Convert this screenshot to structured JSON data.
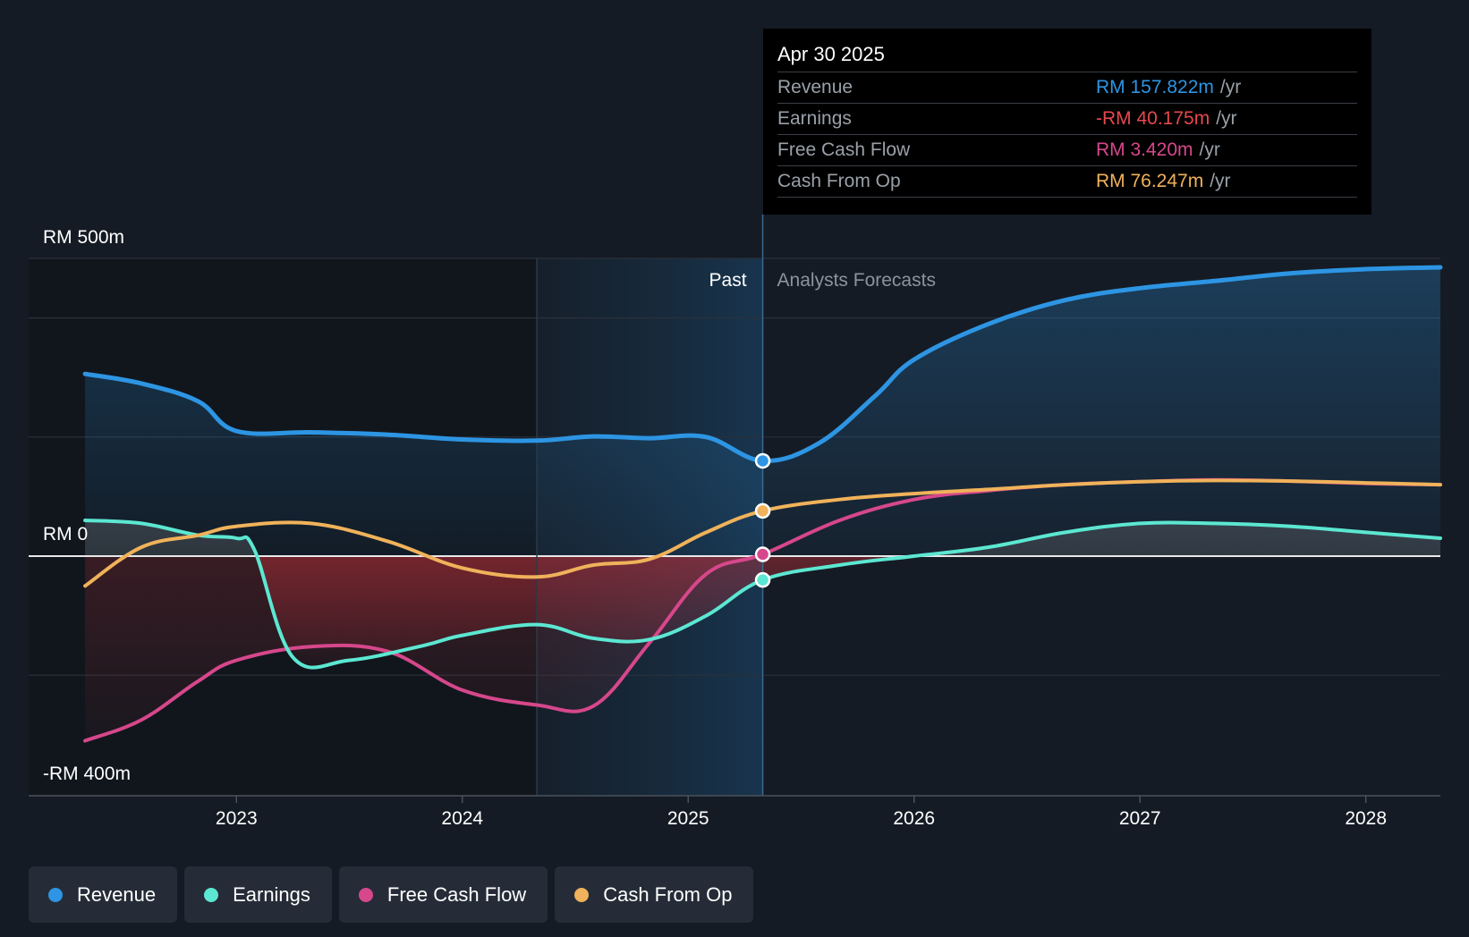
{
  "chart_data": {
    "type": "line",
    "currency_prefix": "RM",
    "y_axis": {
      "min": -400,
      "max": 500,
      "unit": "RM m",
      "labels": [
        {
          "value": 500,
          "text": "RM 500m"
        },
        {
          "value": 0,
          "text": "RM 0"
        },
        {
          "value": -400,
          "text": "-RM 400m"
        }
      ],
      "gridlines": [
        500,
        400,
        200,
        0,
        -200
      ]
    },
    "x_axis": {
      "min": 2022.08,
      "max": 2028.33,
      "ticks": [
        {
          "value": 2023.0,
          "text": "2023"
        },
        {
          "value": 2024.0,
          "text": "2024"
        },
        {
          "value": 2025.0,
          "text": "2025"
        },
        {
          "value": 2026.0,
          "text": "2026"
        },
        {
          "value": 2027.0,
          "text": "2027"
        },
        {
          "value": 2028.0,
          "text": "2028"
        }
      ]
    },
    "regions": {
      "highlight_start": 2024.33,
      "divider": 2025.33,
      "past_label": "Past",
      "forecast_label": "Analysts Forecasts"
    },
    "series": [
      {
        "name": "Revenue",
        "color": "#2d95e3",
        "points": [
          [
            2022.33,
            306
          ],
          [
            2022.58,
            290
          ],
          [
            2022.83,
            260
          ],
          [
            2023.0,
            210
          ],
          [
            2023.33,
            208
          ],
          [
            2023.67,
            204
          ],
          [
            2024.0,
            196
          ],
          [
            2024.33,
            194
          ],
          [
            2024.58,
            201
          ],
          [
            2024.83,
            198
          ],
          [
            2025.08,
            200
          ],
          [
            2025.33,
            160
          ],
          [
            2025.58,
            190
          ],
          [
            2025.83,
            270
          ],
          [
            2026.0,
            330
          ],
          [
            2026.33,
            390
          ],
          [
            2026.67,
            430
          ],
          [
            2027.0,
            450
          ],
          [
            2027.33,
            462
          ],
          [
            2027.67,
            475
          ],
          [
            2028.0,
            482
          ],
          [
            2028.33,
            485
          ]
        ]
      },
      {
        "name": "Earnings",
        "color": "#5ce7d2",
        "points": [
          [
            2022.33,
            60
          ],
          [
            2022.58,
            55
          ],
          [
            2022.83,
            35
          ],
          [
            2023.0,
            30
          ],
          [
            2023.08,
            10
          ],
          [
            2023.25,
            -170
          ],
          [
            2023.5,
            -175
          ],
          [
            2023.83,
            -150
          ],
          [
            2024.0,
            -133
          ],
          [
            2024.33,
            -115
          ],
          [
            2024.58,
            -138
          ],
          [
            2024.83,
            -140
          ],
          [
            2025.08,
            -100
          ],
          [
            2025.33,
            -40
          ],
          [
            2025.67,
            -15
          ],
          [
            2026.0,
            0
          ],
          [
            2026.33,
            15
          ],
          [
            2026.67,
            40
          ],
          [
            2027.0,
            55
          ],
          [
            2027.33,
            55
          ],
          [
            2027.67,
            50
          ],
          [
            2028.0,
            40
          ],
          [
            2028.33,
            30
          ]
        ]
      },
      {
        "name": "Free Cash Flow",
        "color": "#d6478b",
        "points": [
          [
            2022.33,
            -310
          ],
          [
            2022.58,
            -275
          ],
          [
            2022.83,
            -210
          ],
          [
            2023.0,
            -175
          ],
          [
            2023.33,
            -152
          ],
          [
            2023.67,
            -160
          ],
          [
            2024.0,
            -225
          ],
          [
            2024.33,
            -250
          ],
          [
            2024.58,
            -252
          ],
          [
            2024.83,
            -145
          ],
          [
            2025.08,
            -30
          ],
          [
            2025.33,
            3
          ],
          [
            2025.67,
            60
          ],
          [
            2026.0,
            95
          ],
          [
            2026.33,
            110
          ],
          [
            2026.67,
            120
          ],
          [
            2027.0,
            125
          ],
          [
            2027.33,
            128
          ],
          [
            2027.67,
            126
          ],
          [
            2028.0,
            122
          ],
          [
            2028.33,
            120
          ]
        ]
      },
      {
        "name": "Cash From Op",
        "color": "#f0b25a",
        "points": [
          [
            2022.33,
            -50
          ],
          [
            2022.58,
            15
          ],
          [
            2022.83,
            35
          ],
          [
            2023.0,
            50
          ],
          [
            2023.33,
            55
          ],
          [
            2023.67,
            25
          ],
          [
            2024.0,
            -20
          ],
          [
            2024.33,
            -35
          ],
          [
            2024.58,
            -15
          ],
          [
            2024.83,
            -5
          ],
          [
            2025.08,
            40
          ],
          [
            2025.33,
            76
          ],
          [
            2025.67,
            95
          ],
          [
            2026.0,
            105
          ],
          [
            2026.33,
            112
          ],
          [
            2026.67,
            120
          ],
          [
            2027.0,
            125
          ],
          [
            2027.33,
            127
          ],
          [
            2027.67,
            126
          ],
          [
            2028.0,
            123
          ],
          [
            2028.33,
            120
          ]
        ]
      }
    ],
    "markers": {
      "x": 2025.33,
      "values": {
        "Revenue": 160,
        "Earnings": -40,
        "Free Cash Flow": 3,
        "Cash From Op": 76
      }
    }
  },
  "tooltip": {
    "date": "Apr 30 2025",
    "rows": [
      {
        "label": "Revenue",
        "value": "RM 157.822m",
        "unit": "/yr",
        "color": "#2d95e3"
      },
      {
        "label": "Earnings",
        "value": "-RM 40.175m",
        "unit": "/yr",
        "color": "#e5484d"
      },
      {
        "label": "Free Cash Flow",
        "value": "RM 3.420m",
        "unit": "/yr",
        "color": "#d6478b"
      },
      {
        "label": "Cash From Op",
        "value": "RM 76.247m",
        "unit": "/yr",
        "color": "#f0b25a"
      }
    ]
  },
  "legend": [
    {
      "label": "Revenue",
      "color": "#2d95e3"
    },
    {
      "label": "Earnings",
      "color": "#5ce7d2"
    },
    {
      "label": "Free Cash Flow",
      "color": "#d6478b"
    },
    {
      "label": "Cash From Op",
      "color": "#f0b25a"
    }
  ]
}
